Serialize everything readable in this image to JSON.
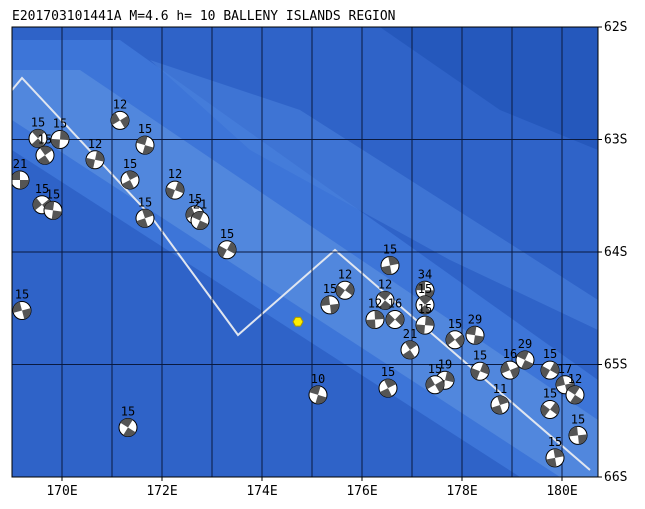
{
  "header": {
    "title": "E201703101441A M=4.6 h= 10 BALLENY ISLANDS REGION"
  },
  "map": {
    "lonlim": [
      169,
      180.72
    ],
    "latlim": [
      62,
      66
    ],
    "lon_ticks": [
      {
        "value": 170,
        "label": "170E"
      },
      {
        "value": 172,
        "label": "172E"
      },
      {
        "value": 174,
        "label": "174E"
      },
      {
        "value": 176,
        "label": "176E"
      },
      {
        "value": 178,
        "label": "178E"
      },
      {
        "value": 180,
        "label": "180E"
      }
    ],
    "lat_ticks": [
      {
        "value": 62,
        "label": "62S"
      },
      {
        "value": 63,
        "label": "63S"
      },
      {
        "value": 64,
        "label": "64S"
      },
      {
        "value": 65,
        "label": "65S"
      },
      {
        "value": 66,
        "label": "66S"
      }
    ],
    "lon_grid": [
      170,
      171,
      172,
      173,
      174,
      175,
      176,
      177,
      178,
      179,
      180
    ],
    "lat_grid": [
      63,
      64,
      65
    ],
    "epicenter": {
      "lon": 174.72,
      "lat": 64.62,
      "color": "#ffee00"
    },
    "events": [
      {
        "lon": 169.16,
        "lat": 63.36,
        "depth": "21"
      },
      {
        "lon": 169.52,
        "lat": 62.99,
        "depth": "15"
      },
      {
        "lon": 169.96,
        "lat": 63.0,
        "depth": "15"
      },
      {
        "lon": 169.6,
        "lat": 63.58,
        "depth": "15"
      },
      {
        "lon": 169.82,
        "lat": 63.63,
        "depth": "15"
      },
      {
        "lon": 169.66,
        "lat": 63.14,
        "depth": "15"
      },
      {
        "lon": 170.66,
        "lat": 63.18,
        "depth": "12"
      },
      {
        "lon": 171.16,
        "lat": 62.83,
        "depth": "12"
      },
      {
        "lon": 171.66,
        "lat": 63.05,
        "depth": "15"
      },
      {
        "lon": 171.36,
        "lat": 63.36,
        "depth": "15"
      },
      {
        "lon": 172.26,
        "lat": 63.45,
        "depth": "12"
      },
      {
        "lon": 172.66,
        "lat": 63.67,
        "depth": "15"
      },
      {
        "lon": 172.76,
        "lat": 63.72,
        "depth": "21"
      },
      {
        "lon": 171.66,
        "lat": 63.7,
        "depth": "15"
      },
      {
        "lon": 173.3,
        "lat": 63.98,
        "depth": "15"
      },
      {
        "lon": 169.2,
        "lat": 64.52,
        "depth": "15"
      },
      {
        "lon": 171.32,
        "lat": 65.56,
        "depth": "15"
      },
      {
        "lon": 176.56,
        "lat": 64.12,
        "depth": "15"
      },
      {
        "lon": 175.66,
        "lat": 64.34,
        "depth": "12"
      },
      {
        "lon": 175.36,
        "lat": 64.47,
        "depth": "15"
      },
      {
        "lon": 176.46,
        "lat": 64.43,
        "depth": "12"
      },
      {
        "lon": 176.26,
        "lat": 64.6,
        "depth": "12"
      },
      {
        "lon": 176.66,
        "lat": 64.6,
        "depth": "16"
      },
      {
        "lon": 177.26,
        "lat": 64.34,
        "depth": "34"
      },
      {
        "lon": 177.26,
        "lat": 64.47,
        "depth": "15"
      },
      {
        "lon": 177.26,
        "lat": 64.65,
        "depth": "15"
      },
      {
        "lon": 177.86,
        "lat": 64.78,
        "depth": "15"
      },
      {
        "lon": 178.26,
        "lat": 64.74,
        "depth": "29"
      },
      {
        "lon": 176.96,
        "lat": 64.87,
        "depth": "21"
      },
      {
        "lon": 177.66,
        "lat": 65.14,
        "depth": "19"
      },
      {
        "lon": 177.46,
        "lat": 65.18,
        "depth": "15"
      },
      {
        "lon": 175.12,
        "lat": 65.27,
        "depth": "10"
      },
      {
        "lon": 176.52,
        "lat": 65.21,
        "depth": "15"
      },
      {
        "lon": 178.36,
        "lat": 65.06,
        "depth": "15"
      },
      {
        "lon": 178.96,
        "lat": 65.05,
        "depth": "16"
      },
      {
        "lon": 179.26,
        "lat": 64.96,
        "depth": "29"
      },
      {
        "lon": 178.76,
        "lat": 65.36,
        "depth": "11"
      },
      {
        "lon": 179.76,
        "lat": 65.05,
        "depth": "15"
      },
      {
        "lon": 180.06,
        "lat": 65.18,
        "depth": "17"
      },
      {
        "lon": 180.26,
        "lat": 65.27,
        "depth": "12"
      },
      {
        "lon": 179.86,
        "lat": 65.83,
        "depth": "15"
      },
      {
        "lon": 179.76,
        "lat": 65.4,
        "depth": "15"
      },
      {
        "lon": 180.32,
        "lat": 65.63,
        "depth": "15"
      }
    ]
  }
}
